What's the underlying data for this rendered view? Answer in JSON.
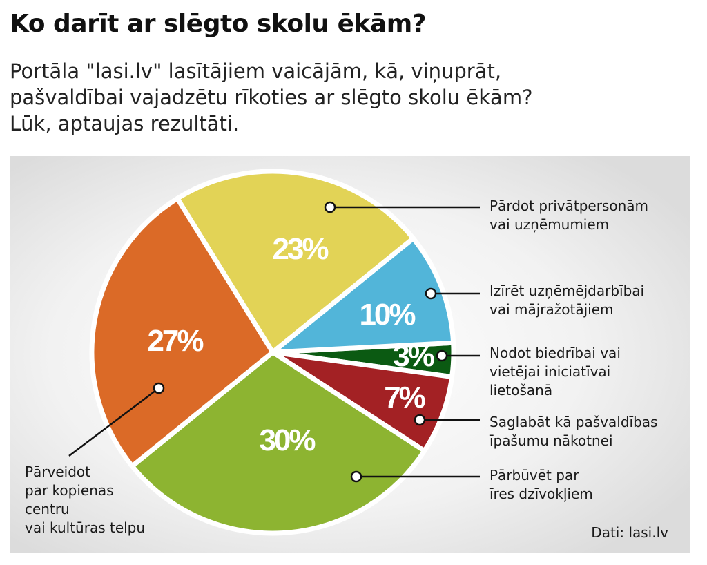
{
  "title": "Ko darīt ar slēgto skolu ēkām?",
  "subtitle": [
    "Portāla \"lasi.lv\" lasītājiem vaicājām, kā, viņuprāt,",
    "pašvaldībai vajadzētu rīkoties ar slēgto skolu ēkām?",
    "Lūk, aptaujas rezultāti."
  ],
  "source": "Dati: lasi.lv",
  "chart_data": {
    "type": "pie",
    "title": "Ko darīt ar slēgto skolu ēkām?",
    "unit": "%",
    "slices": [
      {
        "key": "nodot",
        "value": 3,
        "pct_label": "3%",
        "color": "#0b5a12",
        "label": [
          "Nodot biedrībai vai",
          "vietējai iniciatīvai",
          "lietošanā"
        ]
      },
      {
        "key": "saglabat",
        "value": 7,
        "pct_label": "7%",
        "color": "#a32124",
        "label": [
          "Saglabāt kā pašvaldības",
          "īpašumu nākotnei"
        ]
      },
      {
        "key": "parbuvet",
        "value": 30,
        "pct_label": "30%",
        "color": "#8db431",
        "label": [
          "Pārbūvēt par",
          "īres dzīvokļiem"
        ]
      },
      {
        "key": "parveidot",
        "value": 27,
        "pct_label": "27%",
        "color": "#db6a27",
        "label": [
          "Pārveidot",
          "par kopienas",
          "centru",
          "vai kultūras telpu"
        ]
      },
      {
        "key": "pardot",
        "value": 23,
        "pct_label": "23%",
        "color": "#e2d356",
        "label": [
          "Pārdot privātpersonām",
          "vai uzņēmumiem"
        ]
      },
      {
        "key": "iziret",
        "value": 10,
        "pct_label": "10%",
        "color": "#52b5d9",
        "label": [
          "Izīrēt uzņēmējdarbībai",
          "vai mājražotājiem"
        ]
      }
    ]
  }
}
